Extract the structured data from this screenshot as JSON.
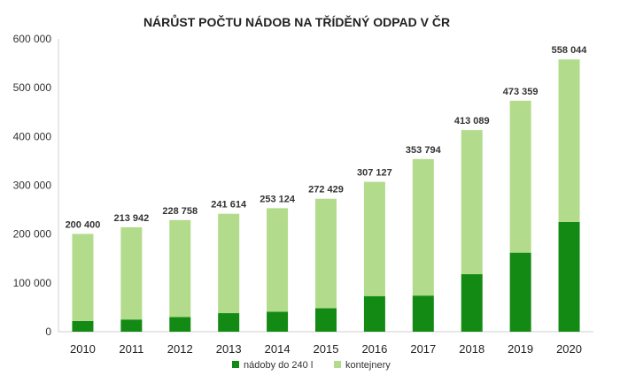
{
  "chart_data": {
    "type": "bar",
    "stacked": true,
    "title": "NÁRŮST POČTU NÁDOB NA TŘÍDĚNÝ ODPAD V ČR",
    "xlabel": "",
    "ylabel": "",
    "categories": [
      "2010",
      "2011",
      "2012",
      "2013",
      "2014",
      "2015",
      "2016",
      "2017",
      "2018",
      "2019",
      "2020"
    ],
    "series": [
      {
        "name": "nádoby do 240 l",
        "color": "#138a13",
        "values": [
          22000,
          25000,
          30000,
          38000,
          41000,
          48000,
          73000,
          74000,
          118000,
          162000,
          225000
        ]
      },
      {
        "name": "kontejnery",
        "color": "#b2dc8c",
        "values": [
          178400,
          188942,
          198758,
          203614,
          212124,
          224429,
          234127,
          279794,
          295089,
          311359,
          333044
        ]
      }
    ],
    "totals": [
      200400,
      213942,
      228758,
      241614,
      253124,
      272429,
      307127,
      353794,
      413089,
      473359,
      558044
    ],
    "total_labels": [
      "200 400",
      "213 942",
      "228 758",
      "241 614",
      "253 124",
      "272 429",
      "307 127",
      "353 794",
      "413 089",
      "473 359",
      "558 044"
    ],
    "yticks": [
      0,
      100000,
      200000,
      300000,
      400000,
      500000,
      600000
    ],
    "ytick_labels": [
      "0",
      "100 000",
      "200 000",
      "300 000",
      "400 000",
      "500 000",
      "600 000"
    ],
    "ylim": [
      0,
      600000
    ],
    "grid": false,
    "legend_position": "bottom"
  }
}
